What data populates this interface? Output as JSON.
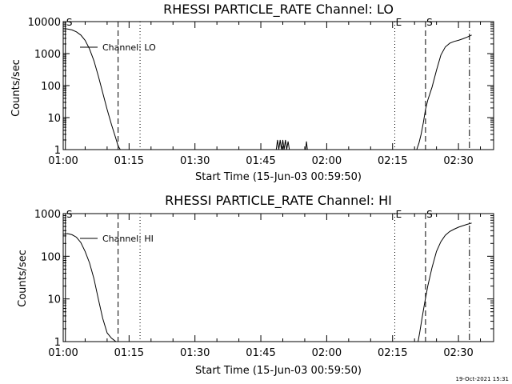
{
  "timestamp": "19-Oct-2021 15:31",
  "chart_data": [
    {
      "type": "line",
      "title": "RHESSI PARTICLE_RATE Channel: LO",
      "xlabel": "Start Time (15-Jun-03 00:59:50)",
      "ylabel": "Counts/sec",
      "yscale": "log",
      "ylim": [
        1,
        10000
      ],
      "xlim_minutes": [
        0,
        98
      ],
      "xticks": [
        "01:00",
        "01:15",
        "01:30",
        "01:45",
        "02:00",
        "02:15",
        "02:30"
      ],
      "xtick_minutes": [
        0,
        15,
        30,
        45,
        60,
        75,
        90
      ],
      "yticks": [
        "1",
        "10",
        "100",
        "1000",
        "10000"
      ],
      "ytick_values": [
        1,
        10,
        100,
        1000,
        10000
      ],
      "legend": "Channel: LO",
      "markers": [
        {
          "label": "S",
          "minute": 0.5,
          "style": "solid"
        },
        {
          "label": "",
          "minute": 12.5,
          "style": "dashed"
        },
        {
          "label": "",
          "minute": 17.5,
          "style": "dotted"
        },
        {
          "label": "E",
          "minute": 75.5,
          "style": "dotted"
        },
        {
          "label": "S",
          "minute": 82.5,
          "style": "dashed"
        },
        {
          "label": "",
          "minute": 92.5,
          "style": "dashdot"
        }
      ],
      "series": [
        {
          "name": "Channel: LO",
          "segments": [
            {
              "x": [
                0,
                1,
                2,
                3,
                4,
                5,
                6,
                7,
                8,
                9,
                10,
                11,
                12,
                12.5,
                13
              ],
              "y": [
                6000,
                5900,
                5500,
                4800,
                3800,
                2600,
                1400,
                600,
                200,
                60,
                18,
                6,
                2.2,
                1.3,
                1
              ]
            },
            {
              "x": [
                48.5,
                48.8,
                49.1,
                49.4,
                49.7,
                50.0,
                50.3,
                50.6,
                50.9,
                51.2,
                51.5
              ],
              "y": [
                1,
                2,
                1,
                2,
                1,
                2,
                1,
                2,
                1,
                1.8,
                1
              ]
            },
            {
              "x": [
                55.2,
                55.4,
                55.6
              ],
              "y": [
                1,
                1.8,
                1
              ]
            },
            {
              "x": [
                80.5,
                81,
                81.5,
                82,
                82.5,
                83,
                84,
                85,
                86,
                87,
                88,
                89,
                90,
                91,
                92,
                93
              ],
              "y": [
                1,
                1.6,
                3,
                7,
                18,
                35,
                90,
                300,
                900,
                1600,
                2100,
                2400,
                2600,
                2900,
                3300,
                3800
              ]
            }
          ]
        }
      ]
    },
    {
      "type": "line",
      "title": "RHESSI PARTICLE_RATE Channel: HI",
      "xlabel": "Start Time (15-Jun-03 00:59:50)",
      "ylabel": "Counts/sec",
      "yscale": "log",
      "ylim": [
        1,
        1000
      ],
      "xlim_minutes": [
        0,
        98
      ],
      "xticks": [
        "01:00",
        "01:15",
        "01:30",
        "01:45",
        "02:00",
        "02:15",
        "02:30"
      ],
      "xtick_minutes": [
        0,
        15,
        30,
        45,
        60,
        75,
        90
      ],
      "yticks": [
        "1",
        "10",
        "100",
        "1000"
      ],
      "ytick_values": [
        1,
        10,
        100,
        1000
      ],
      "legend": "Channel: HI",
      "markers": [
        {
          "label": "S",
          "minute": 0.5,
          "style": "solid"
        },
        {
          "label": "",
          "minute": 12.5,
          "style": "dashed"
        },
        {
          "label": "",
          "minute": 17.5,
          "style": "dotted"
        },
        {
          "label": "E",
          "minute": 75.5,
          "style": "dotted"
        },
        {
          "label": "S",
          "minute": 82.5,
          "style": "dashed"
        },
        {
          "label": "",
          "minute": 92.5,
          "style": "dashdot"
        }
      ],
      "series": [
        {
          "name": "Channel: HI",
          "segments": [
            {
              "x": [
                0,
                1,
                2,
                3,
                4,
                5,
                6,
                7,
                8,
                9,
                10,
                11,
                11.5,
                12
              ],
              "y": [
                330,
                340,
                320,
                280,
                210,
                130,
                70,
                30,
                10,
                3.5,
                1.6,
                1.2,
                1.1,
                1
              ]
            },
            {
              "x": [
                80.8,
                81.2,
                81.7,
                82.3,
                83,
                84,
                85,
                86,
                87,
                88,
                89,
                90,
                91,
                92,
                93
              ],
              "y": [
                1,
                1.7,
                3.5,
                8,
                20,
                55,
                130,
                220,
                310,
                380,
                430,
                480,
                520,
                560,
                600
              ]
            }
          ]
        }
      ]
    }
  ]
}
